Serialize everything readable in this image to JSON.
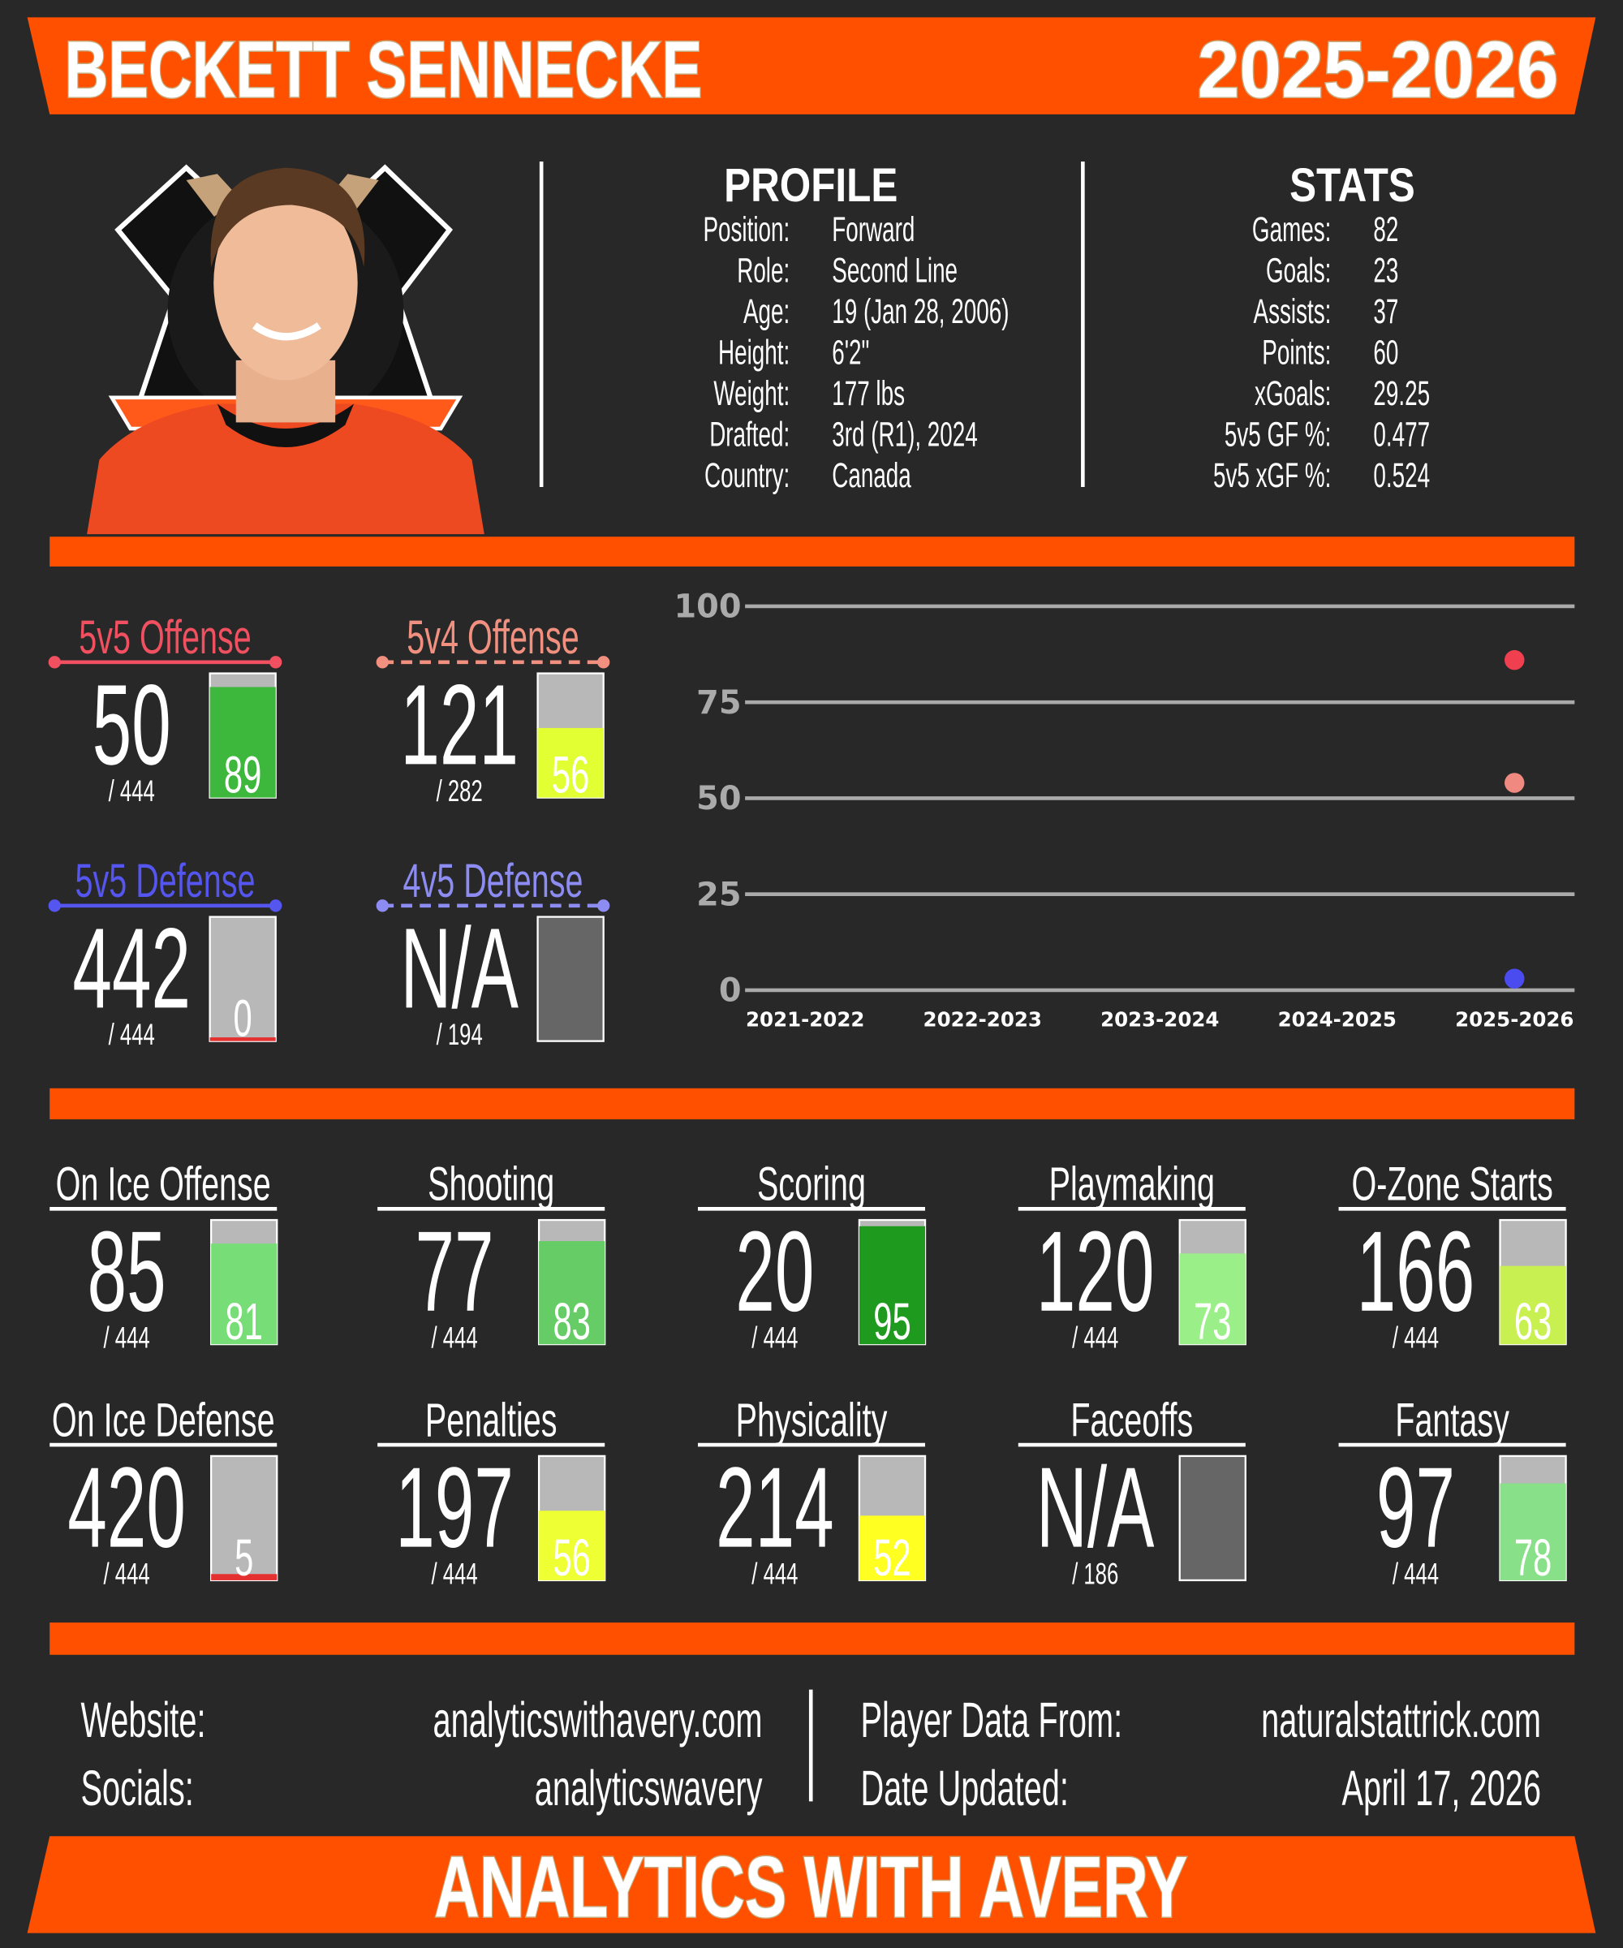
{
  "header": {
    "name": "BECKETT SENNECKE",
    "season": "2025-2026"
  },
  "profile": {
    "title": "PROFILE",
    "rows": [
      {
        "label": "Position:",
        "value": "Forward"
      },
      {
        "label": "Role:",
        "value": "Second Line"
      },
      {
        "label": "Age:",
        "value": "19 (Jan 28, 2006)"
      },
      {
        "label": "Height:",
        "value": "6'2\""
      },
      {
        "label": "Weight:",
        "value": "177 lbs"
      },
      {
        "label": "Drafted:",
        "value": "3rd (R1), 2024"
      },
      {
        "label": "Country:",
        "value": "Canada"
      }
    ]
  },
  "stats": {
    "title": "STATS",
    "rows": [
      {
        "label": "Games:",
        "value": 82
      },
      {
        "label": "Goals:",
        "value": 23
      },
      {
        "label": "Assists:",
        "value": 37
      },
      {
        "label": "Points:",
        "value": 60
      },
      {
        "label": "xGoals:",
        "value": 29.25
      },
      {
        "label": "5v5 GF %:",
        "value": 0.477
      },
      {
        "label": "5v5 xGF %:",
        "value": 0.524
      }
    ]
  },
  "special_teams": [
    {
      "title": "5v5 Offense",
      "title_color": "#f0505f",
      "dashed": false,
      "rank": 50,
      "total": "/ 444",
      "percentile": 89,
      "color": "#3db83d"
    },
    {
      "title": "5v4 Offense",
      "title_color": "#f29080",
      "dashed": true,
      "rank": 121,
      "total": "/ 282",
      "percentile": 56,
      "color": "#e2ff33"
    },
    {
      "title": "5v5 Defense",
      "title_color": "#5555f0",
      "dashed": false,
      "rank": 442,
      "total": "/ 444",
      "percentile": 0,
      "color": "#e53030"
    },
    {
      "title": "4v5 Defense",
      "title_color": "#8c8cf2",
      "dashed": true,
      "rank": "N/A",
      "total": "/ 194",
      "percentile": null,
      "color": "#666666"
    }
  ],
  "grid_stats": [
    {
      "title": "On Ice Offense",
      "rank": 85,
      "total": "/ 444",
      "percentile": 81,
      "color": "#77dd77"
    },
    {
      "title": "Shooting",
      "rank": 77,
      "total": "/ 444",
      "percentile": 83,
      "color": "#66cc66"
    },
    {
      "title": "Scoring",
      "rank": 20,
      "total": "/ 444",
      "percentile": 95,
      "color": "#1e9a1e"
    },
    {
      "title": "Playmaking",
      "rank": 120,
      "total": "/ 444",
      "percentile": 73,
      "color": "#9bef88"
    },
    {
      "title": "O-Zone Starts",
      "rank": 166,
      "total": "/ 444",
      "percentile": 63,
      "color": "#c8f050"
    },
    {
      "title": "On Ice Defense",
      "rank": 420,
      "total": "/ 444",
      "percentile": 5,
      "color": "#e53030"
    },
    {
      "title": "Penalties",
      "rank": 197,
      "total": "/ 444",
      "percentile": 56,
      "color": "#eeff33"
    },
    {
      "title": "Physicality",
      "rank": 214,
      "total": "/ 444",
      "percentile": 52,
      "color": "#ffff22"
    },
    {
      "title": "Faceoffs",
      "rank": "N/A",
      "total": "/ 186",
      "percentile": null,
      "color": "#666666"
    },
    {
      "title": "Fantasy",
      "rank": 97,
      "total": "/ 444",
      "percentile": 78,
      "color": "#88e088"
    }
  ],
  "chart_data": {
    "type": "scatter",
    "categories": [
      "2021-2022",
      "2022-2023",
      "2023-2024",
      "2024-2025",
      "2025-2026"
    ],
    "series": [
      {
        "color": "#f04050",
        "values": [
          null,
          null,
          null,
          null,
          86
        ]
      },
      {
        "color": "#f08a80",
        "values": [
          null,
          null,
          null,
          null,
          54
        ]
      },
      {
        "color": "#4a4cf0",
        "values": [
          null,
          null,
          null,
          null,
          3
        ]
      }
    ],
    "ylim": [
      0,
      100
    ],
    "yticks": [
      0,
      25,
      50,
      75,
      100
    ],
    "grid": true
  },
  "footer": {
    "left": [
      {
        "label": "Website:",
        "value": "analyticswithavery.com"
      },
      {
        "label": "Socials:",
        "value": "analyticswavery"
      }
    ],
    "right": [
      {
        "label": "Player Data From:",
        "value": "naturalstattrick.com"
      },
      {
        "label": "Date Updated:",
        "value": "April 17, 2026"
      }
    ],
    "banner": "ANALYTICS WITH AVERY"
  }
}
